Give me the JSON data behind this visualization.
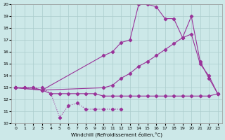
{
  "xlabel": "Windchill (Refroidissement éolien,°C)",
  "bg_color": "#cce8e8",
  "grid_color": "#aacccc",
  "line_color": "#993399",
  "xlim": [
    -0.5,
    23.5
  ],
  "ylim": [
    10,
    20
  ],
  "xticks": [
    0,
    1,
    2,
    3,
    4,
    5,
    6,
    7,
    8,
    9,
    10,
    11,
    12,
    13,
    14,
    15,
    16,
    17,
    18,
    19,
    20,
    21,
    22,
    23
  ],
  "yticks": [
    10,
    11,
    12,
    13,
    14,
    15,
    16,
    17,
    18,
    19,
    20
  ],
  "line1_x": [
    0,
    1,
    2,
    3,
    4,
    5,
    6,
    7,
    8,
    9,
    10,
    11,
    12
  ],
  "line1_y": [
    13,
    13,
    13,
    13,
    12.5,
    10.5,
    11.5,
    11.7,
    11.2,
    11.2,
    11.2,
    11.2,
    11.2
  ],
  "line2_x": [
    0,
    1,
    2,
    3,
    4,
    5,
    6,
    7,
    8,
    9,
    10,
    11,
    12,
    13,
    14,
    15,
    16,
    17,
    18,
    19,
    20,
    21,
    22,
    23
  ],
  "line2_y": [
    13,
    13,
    13,
    12.8,
    12.5,
    12.5,
    12.5,
    12.5,
    12.5,
    12.5,
    12.3,
    12.3,
    12.3,
    12.3,
    12.3,
    12.3,
    12.3,
    12.3,
    12.3,
    12.3,
    12.3,
    12.3,
    12.3,
    12.5
  ],
  "line3_x": [
    0,
    3,
    10,
    11,
    12,
    13,
    14,
    15,
    16,
    17,
    18,
    19,
    20,
    21,
    22,
    23
  ],
  "line3_y": [
    13,
    12.8,
    15.7,
    16.0,
    16.8,
    17.0,
    20.0,
    20.0,
    19.8,
    18.8,
    18.8,
    17.2,
    19.0,
    15.2,
    13.8,
    12.5
  ],
  "line4_x": [
    0,
    3,
    10,
    11,
    12,
    13,
    14,
    15,
    16,
    17,
    18,
    19,
    20,
    21,
    22,
    23
  ],
  "line4_y": [
    13,
    12.8,
    13.0,
    13.2,
    13.8,
    14.2,
    14.8,
    15.2,
    15.7,
    16.2,
    16.7,
    17.2,
    17.5,
    15.0,
    14.0,
    12.5
  ]
}
